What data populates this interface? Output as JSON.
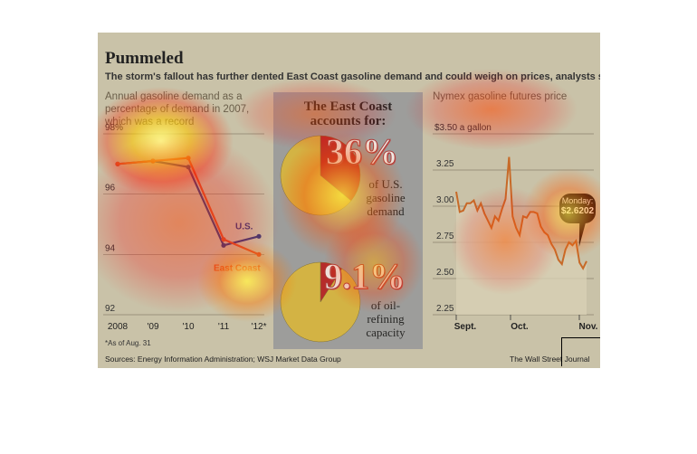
{
  "header": {
    "title": "Pummeled",
    "subtitle": "The storm's fallout has further dented East Coast gasoline demand and could weigh on prices, analysts say."
  },
  "left_panel": {
    "title_line1": "Annual gasoline demand as a",
    "title_line2": "percentage of demand in 2007,",
    "title_line3": "which was a record",
    "footnote": "*As of Aug. 31"
  },
  "mid_panel": {
    "header_line1": "The East Coast",
    "header_line2": "accounts for:",
    "stat1": {
      "value": "36%",
      "caption": [
        "of U.S.",
        "gasoline",
        "demand"
      ],
      "fraction": 0.36
    },
    "stat2": {
      "value": "9.1%",
      "caption": [
        "of oil-",
        "refining",
        "capacity"
      ],
      "fraction": 0.091
    }
  },
  "right_panel": {
    "title": "Nymex gasoline futures price",
    "callout_label": "Monday:",
    "callout_value": "$2.6202"
  },
  "footer": {
    "sources": "Sources: Energy Information Administration; WSJ Market Data Group",
    "credit": "The Wall Street Journal"
  },
  "colors": {
    "us": "#3b3f78",
    "east_coast": "#d9542a",
    "pie_fill": "#d4b23c",
    "pie_slice": "#b52020",
    "futures": "#c76a28"
  },
  "chart_data": [
    {
      "type": "line",
      "categories": [
        "2008",
        "'09",
        "'10",
        "'11",
        "'12*"
      ],
      "series": [
        {
          "name": "U.S.",
          "values": [
            97.0,
            97.1,
            96.9,
            94.3,
            94.6
          ]
        },
        {
          "name": "East Coast",
          "values": [
            97.0,
            97.1,
            97.2,
            94.5,
            94.0
          ]
        }
      ],
      "yticks": [
        "98%",
        "96",
        "94",
        "92"
      ],
      "ylim": [
        92,
        98
      ]
    },
    {
      "type": "pie",
      "slices": [
        {
          "value": 36
        },
        {
          "value": 64
        }
      ]
    },
    {
      "type": "pie",
      "slices": [
        {
          "value": 9.1
        },
        {
          "value": 90.9
        }
      ]
    },
    {
      "type": "area",
      "x_labels": [
        "Sept.",
        "Oct.",
        "Nov."
      ],
      "yticks": [
        "$3.50 a gallon",
        "3.25",
        "3.00",
        "2.75",
        "2.50",
        "2.25"
      ],
      "ylim": [
        2.25,
        3.5
      ],
      "values": [
        3.1,
        2.96,
        2.97,
        3.02,
        3.02,
        3.04,
        2.97,
        3.02,
        2.95,
        2.9,
        2.85,
        2.93,
        2.9,
        2.98,
        3.05,
        3.34,
        2.93,
        2.85,
        2.8,
        2.93,
        2.92,
        2.96,
        2.96,
        2.95,
        2.86,
        2.82,
        2.8,
        2.74,
        2.7,
        2.63,
        2.6,
        2.7,
        2.75,
        2.73,
        2.76,
        2.61,
        2.57,
        2.62
      ]
    }
  ]
}
